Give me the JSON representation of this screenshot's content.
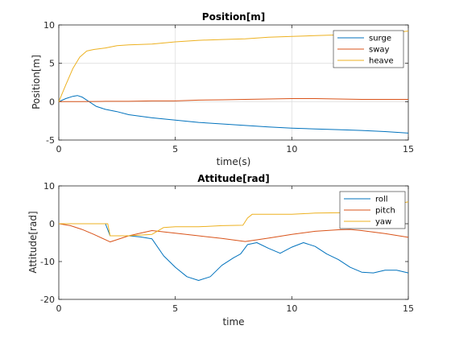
{
  "chart_data": [
    {
      "type": "line",
      "title": "Position[m]",
      "xlabel": "time(s)",
      "ylabel": "Position[m]",
      "xlim": [
        0,
        15
      ],
      "ylim": [
        -5,
        10
      ],
      "xticks": [
        "0",
        "5",
        "10",
        "15"
      ],
      "yticks": [
        "-5",
        "0",
        "5",
        "10"
      ],
      "grid": true,
      "legend_position": "top-right",
      "series": [
        {
          "name": "surge",
          "color": "#0072BD",
          "x": [
            0,
            0.3,
            0.6,
            0.8,
            1.0,
            1.3,
            1.6,
            2.0,
            2.5,
            3.0,
            4.0,
            5.0,
            6.0,
            7.0,
            8.0,
            9.0,
            10.0,
            11.0,
            12.0,
            13.0,
            14.0,
            15.0
          ],
          "y": [
            0.0,
            0.4,
            0.7,
            0.8,
            0.6,
            0.0,
            -0.6,
            -1.0,
            -1.3,
            -1.7,
            -2.1,
            -2.4,
            -2.7,
            -2.9,
            -3.1,
            -3.3,
            -3.45,
            -3.55,
            -3.65,
            -3.75,
            -3.9,
            -4.1
          ]
        },
        {
          "name": "sway",
          "color": "#D95319",
          "x": [
            0,
            0.5,
            1.0,
            2.0,
            3.0,
            4.0,
            5.0,
            6.0,
            7.0,
            8.0,
            9.0,
            10.0,
            11.0,
            12.0,
            13.0,
            14.0,
            15.0
          ],
          "y": [
            0.0,
            0.0,
            0.0,
            0.05,
            0.05,
            0.1,
            0.1,
            0.2,
            0.25,
            0.3,
            0.35,
            0.4,
            0.4,
            0.35,
            0.3,
            0.3,
            0.3
          ]
        },
        {
          "name": "heave",
          "color": "#EDB120",
          "x": [
            0,
            0.3,
            0.6,
            0.9,
            1.2,
            1.5,
            2.0,
            2.5,
            3.0,
            4.0,
            5.0,
            6.0,
            7.0,
            8.0,
            9.0,
            10.0,
            11.0,
            12.0,
            13.0,
            14.0,
            15.0
          ],
          "y": [
            0.0,
            2.2,
            4.3,
            5.8,
            6.6,
            6.8,
            7.0,
            7.3,
            7.4,
            7.5,
            7.8,
            8.0,
            8.1,
            8.2,
            8.4,
            8.5,
            8.6,
            8.7,
            8.8,
            8.9,
            9.2
          ]
        }
      ]
    },
    {
      "type": "line",
      "title": "Attitude[rad]",
      "xlabel": "time",
      "ylabel": "Attitude[rad]",
      "xlim": [
        0,
        15
      ],
      "ylim": [
        -20,
        10
      ],
      "xticks": [
        "0",
        "5",
        "10",
        "15"
      ],
      "yticks": [
        "-20",
        "-10",
        "0",
        "10"
      ],
      "grid": false,
      "legend_position": "top-right",
      "series": [
        {
          "name": "roll",
          "color": "#0072BD",
          "x": [
            0,
            1.0,
            2.0,
            2.2,
            3.0,
            3.5,
            4.0,
            4.5,
            5.0,
            5.5,
            6.0,
            6.5,
            7.0,
            7.5,
            7.8,
            8.1,
            8.5,
            9.0,
            9.5,
            10.0,
            10.5,
            11.0,
            11.5,
            12.0,
            12.5,
            13.0,
            13.5,
            14.0,
            14.5,
            15.0
          ],
          "y": [
            0,
            0,
            0,
            -3.2,
            -3.2,
            -3.5,
            -4.0,
            -8.5,
            -11.5,
            -14.0,
            -15.0,
            -14.0,
            -11.0,
            -9.0,
            -8.0,
            -5.5,
            -5.0,
            -6.5,
            -7.8,
            -6.2,
            -5.0,
            -6.0,
            -8.0,
            -9.5,
            -11.5,
            -12.8,
            -13.0,
            -12.3,
            -12.3,
            -13.0
          ]
        },
        {
          "name": "pitch",
          "color": "#D95319",
          "x": [
            0,
            0.5,
            1.0,
            1.5,
            2.2,
            3.0,
            4.0,
            5.0,
            6.0,
            7.0,
            8.0,
            9.0,
            10.0,
            11.0,
            12.0,
            12.5,
            13.0,
            14.0,
            15.0
          ],
          "y": [
            0,
            -0.5,
            -1.5,
            -2.8,
            -4.8,
            -3.2,
            -1.8,
            -2.5,
            -3.2,
            -3.9,
            -4.7,
            -3.8,
            -2.8,
            -2.0,
            -1.6,
            -1.5,
            -1.8,
            -2.6,
            -3.6
          ]
        },
        {
          "name": "yaw",
          "color": "#EDB120",
          "x": [
            0,
            1.0,
            2.1,
            2.2,
            3.0,
            4.0,
            4.5,
            5.0,
            6.0,
            7.0,
            7.9,
            8.1,
            8.3,
            9.0,
            10.0,
            11.0,
            12.0,
            13.0,
            14.0,
            15.0
          ],
          "y": [
            0,
            0,
            0,
            -3.2,
            -3.2,
            -2.8,
            -1.0,
            -0.8,
            -0.8,
            -0.5,
            -0.4,
            1.5,
            2.5,
            2.5,
            2.5,
            2.8,
            2.9,
            3.0,
            4.5,
            5.8
          ]
        }
      ]
    }
  ]
}
